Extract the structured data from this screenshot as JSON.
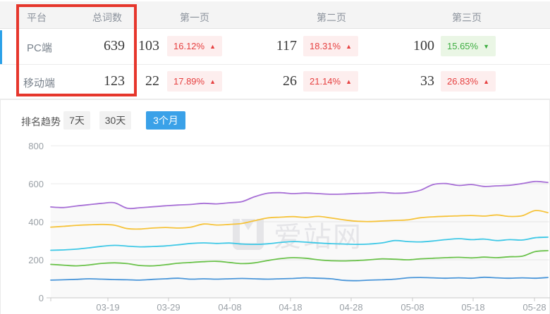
{
  "table": {
    "headers": {
      "platform": "平台",
      "total": "总词数",
      "page1": "第一页",
      "page2": "第二页",
      "page3": "第三页"
    },
    "rows": [
      {
        "platform": "PC端",
        "total": "639",
        "page1": {
          "count": "103",
          "pct": "16.12%",
          "dir": "up"
        },
        "page2": {
          "count": "117",
          "pct": "18.31%",
          "dir": "up"
        },
        "page3": {
          "count": "100",
          "pct": "15.65%",
          "dir": "down"
        }
      },
      {
        "platform": "移动端",
        "total": "123",
        "page1": {
          "count": "22",
          "pct": "17.89%",
          "dir": "up"
        },
        "page2": {
          "count": "26",
          "pct": "21.14%",
          "dir": "up"
        },
        "page3": {
          "count": "33",
          "pct": "26.83%",
          "dir": "up"
        }
      }
    ]
  },
  "trend": {
    "label": "排名趋势",
    "tabs": [
      {
        "label": "7天",
        "active": false
      },
      {
        "label": "30天",
        "active": false
      },
      {
        "label": "3个月",
        "active": true
      }
    ]
  },
  "icons": {
    "up": "▲",
    "down": "▼"
  },
  "watermark": {
    "text": "爱站网"
  },
  "colors": {
    "accent_blue": "#3aa1e8",
    "highlight_red": "#e6362c",
    "badge_up_text": "#e64040",
    "badge_up_bg": "#fdeeee",
    "badge_down_text": "#3fae42",
    "badge_down_bg": "#eaf6e5"
  },
  "chart_data": {
    "type": "line",
    "title": "",
    "xlabel": "",
    "ylabel": "",
    "ylim": [
      0,
      800
    ],
    "grid": true,
    "legend": "none",
    "y_tick_labels": [
      "800",
      "600",
      "400",
      "200",
      "0"
    ],
    "x_tick_labels": [
      "03-19",
      "03-29",
      "04-08",
      "04-18",
      "04-28",
      "05-08",
      "05-18",
      "05-28"
    ],
    "series": [
      {
        "name": "line1",
        "color": "#a76fd6",
        "fill_under": true,
        "values": [
          478,
          475,
          483,
          490,
          497,
          500,
          471,
          474,
          479,
          484,
          488,
          491,
          497,
          494,
          500,
          506,
          532,
          550,
          553,
          548,
          551,
          548,
          545,
          546,
          549,
          551,
          554,
          550,
          553,
          566,
          596,
          601,
          591,
          596,
          586,
          589,
          592,
          601,
          612,
          607
        ]
      },
      {
        "name": "line2",
        "color": "#f6c33a",
        "fill_under": false,
        "values": [
          372,
          376,
          381,
          384,
          386,
          382,
          364,
          362,
          367,
          370,
          367,
          372,
          388,
          383,
          386,
          391,
          406,
          420,
          424,
          427,
          423,
          428,
          420,
          410,
          403,
          401,
          404,
          407,
          410,
          421,
          426,
          429,
          431,
          433,
          430,
          436,
          428,
          432,
          459,
          448
        ]
      },
      {
        "name": "line3",
        "color": "#3ec8e6",
        "fill_under": false,
        "values": [
          250,
          252,
          256,
          263,
          271,
          276,
          272,
          268,
          270,
          273,
          279,
          286,
          289,
          286,
          288,
          283,
          281,
          284,
          291,
          296,
          293,
          288,
          285,
          283,
          281,
          283,
          289,
          301,
          296,
          294,
          299,
          306,
          311,
          306,
          309,
          301,
          306,
          304,
          316,
          319
        ]
      },
      {
        "name": "line4",
        "color": "#6ac24a",
        "fill_under": false,
        "values": [
          176,
          172,
          168,
          173,
          181,
          184,
          180,
          170,
          168,
          174,
          182,
          186,
          190,
          192,
          186,
          180,
          184,
          196,
          206,
          211,
          208,
          200,
          195,
          194,
          196,
          200,
          205,
          203,
          200,
          205,
          208,
          211,
          213,
          210,
          214,
          211,
          216,
          219,
          243,
          248
        ]
      },
      {
        "name": "line5",
        "color": "#4a96d9",
        "fill_under": false,
        "values": [
          93,
          95,
          97,
          100,
          98,
          96,
          95,
          93,
          97,
          100,
          103,
          98,
          100,
          98,
          100,
          102,
          100,
          98,
          100,
          102,
          105,
          103,
          100,
          92,
          90,
          93,
          95,
          98,
          105,
          107,
          105,
          103,
          105,
          103,
          108,
          105,
          103,
          105,
          103,
          107
        ]
      }
    ]
  }
}
